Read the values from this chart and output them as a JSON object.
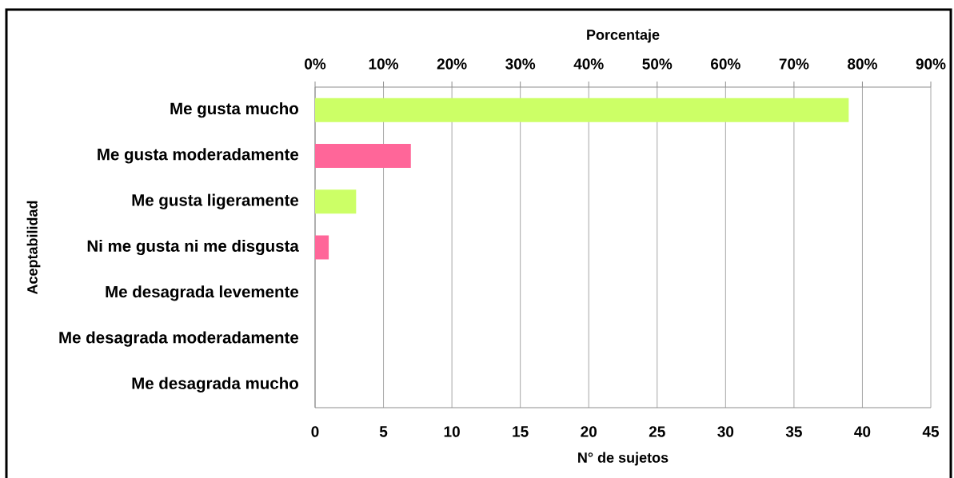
{
  "chart_data": {
    "type": "bar",
    "orientation": "horizontal",
    "categories": [
      "Me gusta mucho",
      "Me gusta moderadamente",
      "Me gusta ligeramente",
      "Ni me gusta ni me disgusta",
      "Me desagrada levemente",
      "Me desagrada moderadamente",
      "Me desagrada mucho"
    ],
    "values": [
      39,
      7,
      3,
      1,
      0,
      0,
      0
    ],
    "colors": [
      "#ccff66",
      "#ff6699",
      "#ccff66",
      "#ff6699",
      "#ccff66",
      "#ff6699",
      "#ccff66"
    ],
    "xlim": [
      0,
      45
    ],
    "xticks": [
      0,
      5,
      10,
      15,
      20,
      25,
      30,
      35,
      40,
      45
    ],
    "x2lim": [
      0,
      90
    ],
    "x2ticks": [
      {
        "value": 0,
        "label": "0%"
      },
      {
        "value": 10,
        "label": "10%"
      },
      {
        "value": 20,
        "label": "20%"
      },
      {
        "value": 30,
        "label": "30%"
      },
      {
        "value": 40,
        "label": "40%"
      },
      {
        "value": 50,
        "label": "50%"
      },
      {
        "value": 60,
        "label": "60%"
      },
      {
        "value": 70,
        "label": "70%"
      },
      {
        "value": 80,
        "label": "80%"
      },
      {
        "value": 90,
        "label": "90%"
      }
    ],
    "xlabel": "N° de sujetos",
    "x2label": "Porcentaje",
    "ylabel": "Aceptabilidad",
    "grid": "x"
  }
}
